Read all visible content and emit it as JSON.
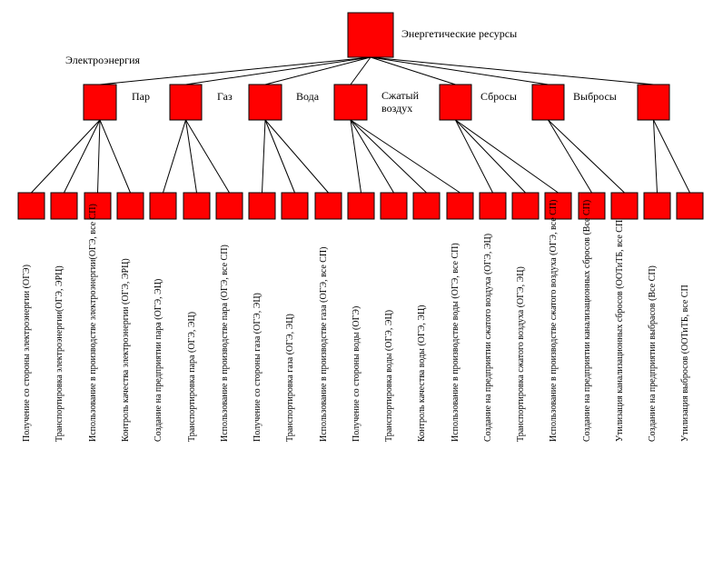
{
  "colors": {
    "node_fill": "#ff0000",
    "node_stroke": "#000000",
    "line": "#000000"
  },
  "root": {
    "label": "Энергетические ресурсы"
  },
  "categories": [
    {
      "label": "Электроэнергия"
    },
    {
      "label": "Пар"
    },
    {
      "label": "Газ"
    },
    {
      "label": "Вода"
    },
    {
      "label": "Сжатый\nвоздух"
    },
    {
      "label": "Сбросы"
    },
    {
      "label": "Выбросы"
    }
  ],
  "leaves": [
    {
      "label": "Получение со стороны электроэнергии (ОГЭ)"
    },
    {
      "label": "Транспортировка электроэнергии(ОГЭ, ЭРЦ)"
    },
    {
      "label": "Использование в производстве электроэнергии(ОГЭ, все СП)"
    },
    {
      "label": "Контроль качества электроэнергии  (ОГЭ, ЭРЦ)"
    },
    {
      "label": "Создание на предприятии пара (ОГЭ, ЭЦ)"
    },
    {
      "label": "Транспортировка пара (ОГЭ, ЭЦ)"
    },
    {
      "label": "Использование в производстве пара (ОГЭ, все СП)"
    },
    {
      "label": "Получение со стороны газа (ОГЭ, ЭЦ)"
    },
    {
      "label": "Транспортировка  газа (ОГЭ, ЭЦ)"
    },
    {
      "label": "Использование в производстве газа (ОГЭ, все СП)"
    },
    {
      "label": "Получение со стороны воды (ОГЭ)"
    },
    {
      "label": "Транспортировка воды (ОГЭ, ЭЦ)"
    },
    {
      "label": "Контроль качества воды (ОГЭ, ЭЦ)"
    },
    {
      "label": "Использование в производстве воды (ОГЭ, все СП)"
    },
    {
      "label": "Создание на предприятии сжатого воздуха (ОГЭ, ЭЦ)"
    },
    {
      "label": "Транспортировка сжатого воздуха (ОГЭ, ЭЦ)"
    },
    {
      "label": "Использование в производстве сжатого воздуха (ОГЭ, все СП)"
    },
    {
      "label": "Создание на предприятии канализационных сбросов (Все СП)"
    },
    {
      "label": "Утилизация канализационных сбросов (ООТиТБ, все СП"
    },
    {
      "label": "Создание на предприятии выбрасов  (Все СП)"
    },
    {
      "label": "Утилизация выбросов (ООТиТБ, все СП"
    }
  ]
}
